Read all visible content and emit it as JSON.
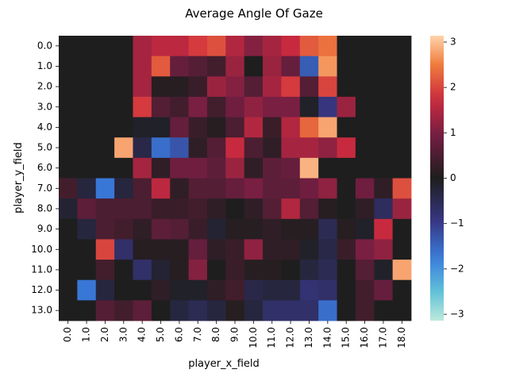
{
  "chart_data": {
    "type": "heatmap",
    "title": "Average Angle Of Gaze",
    "xlabel": "player_x_field",
    "ylabel": "player_y_field",
    "x_categories": [
      "0.0",
      "1.0",
      "2.0",
      "3.0",
      "4.0",
      "5.0",
      "6.0",
      "7.0",
      "8.0",
      "9.0",
      "10.0",
      "11.0",
      "12.0",
      "13.0",
      "14.0",
      "15.0",
      "16.0",
      "17.0",
      "18.0"
    ],
    "y_categories": [
      "0.0",
      "1.0",
      "2.0",
      "3.0",
      "4.0",
      "5.0",
      "6.0",
      "7.0",
      "8.0",
      "9.0",
      "10.0",
      "11.0",
      "12.0",
      "13.0"
    ],
    "values": [
      [
        0.0,
        0.0,
        0.0,
        0.0,
        1.4,
        1.6,
        1.6,
        1.9,
        2.1,
        1.5,
        1.1,
        1.4,
        1.7,
        2.2,
        2.4,
        0.0,
        0.0,
        0.0,
        0.0
      ],
      [
        0.0,
        0.0,
        0.0,
        0.0,
        1.4,
        2.2,
        0.8,
        0.6,
        0.4,
        1.3,
        0.0,
        1.3,
        0.8,
        -1.4,
        2.7,
        0.0,
        0.0,
        0.0,
        0.0
      ],
      [
        0.0,
        0.0,
        0.0,
        0.0,
        1.4,
        0.1,
        0.1,
        0.3,
        1.3,
        1.1,
        0.6,
        1.4,
        1.9,
        0.6,
        2.0,
        0.0,
        0.0,
        0.0,
        0.0
      ],
      [
        0.0,
        0.0,
        0.0,
        0.0,
        1.9,
        0.6,
        0.4,
        1.0,
        0.4,
        0.9,
        1.2,
        1.0,
        1.0,
        -0.1,
        -0.9,
        1.3,
        0.0,
        0.0,
        0.0
      ],
      [
        0.0,
        0.0,
        0.0,
        0.0,
        -0.1,
        -0.1,
        0.8,
        0.3,
        0.1,
        0.5,
        1.5,
        0.3,
        1.5,
        2.3,
        2.8,
        0.0,
        0.0,
        0.0,
        0.0
      ],
      [
        0.0,
        0.0,
        0.0,
        2.8,
        -0.4,
        -1.6,
        -1.3,
        0.2,
        0.6,
        1.7,
        0.5,
        0.2,
        1.4,
        1.4,
        1.2,
        1.7,
        0.0,
        0.0,
        0.0
      ],
      [
        0.0,
        0.0,
        0.0,
        0.0,
        1.4,
        0.2,
        0.9,
        0.9,
        0.7,
        1.3,
        0.2,
        0.7,
        0.8,
        2.9,
        0.0,
        0.0,
        0.0,
        0.0,
        0.0
      ],
      [
        0.4,
        -0.3,
        -1.7,
        -0.3,
        0.5,
        1.6,
        0.2,
        0.6,
        0.6,
        0.8,
        1.0,
        0.7,
        0.7,
        0.9,
        1.2,
        0.0,
        0.9,
        0.2,
        2.1
      ],
      [
        -0.2,
        0.7,
        0.5,
        0.5,
        0.5,
        0.3,
        0.3,
        0.4,
        0.2,
        0.0,
        0.2,
        0.6,
        1.5,
        0.6,
        0.1,
        0.0,
        0.2,
        -0.6,
        1.3
      ],
      [
        0.0,
        -0.3,
        0.5,
        0.4,
        0.2,
        0.7,
        0.6,
        0.3,
        -0.2,
        0.1,
        0.1,
        0.2,
        0.1,
        0.1,
        -0.5,
        0.1,
        -0.1,
        1.7,
        0.0
      ],
      [
        0.0,
        0.0,
        2.0,
        -0.7,
        0.1,
        0.1,
        0.1,
        0.8,
        0.2,
        0.3,
        1.2,
        0.2,
        0.2,
        -0.1,
        -0.4,
        0.3,
        1.0,
        1.2,
        0.0
      ],
      [
        0.0,
        0.0,
        0.4,
        0.0,
        -0.7,
        -0.2,
        0.1,
        1.1,
        0.0,
        0.3,
        0.1,
        0.1,
        0.0,
        -0.3,
        -0.5,
        0.0,
        0.6,
        -0.1,
        2.8
      ],
      [
        0.0,
        -1.7,
        -0.3,
        0.0,
        0.0,
        0.2,
        -0.1,
        -0.1,
        0.2,
        0.4,
        -0.4,
        -0.3,
        -0.3,
        -0.8,
        -0.7,
        0.0,
        0.4,
        0.8,
        0.0
      ],
      [
        0.0,
        0.0,
        0.6,
        0.4,
        0.7,
        0.0,
        -0.3,
        -0.5,
        -0.3,
        0.1,
        -0.3,
        -0.7,
        -0.7,
        -0.7,
        -1.6,
        0.0,
        0.4,
        0.0,
        0.0
      ]
    ],
    "vmin": -3.14,
    "vmax": 3.14,
    "colorbar_ticks": [
      -3,
      -2,
      -1,
      0,
      1,
      2,
      3
    ],
    "colormap": "icefire",
    "grid": false
  }
}
